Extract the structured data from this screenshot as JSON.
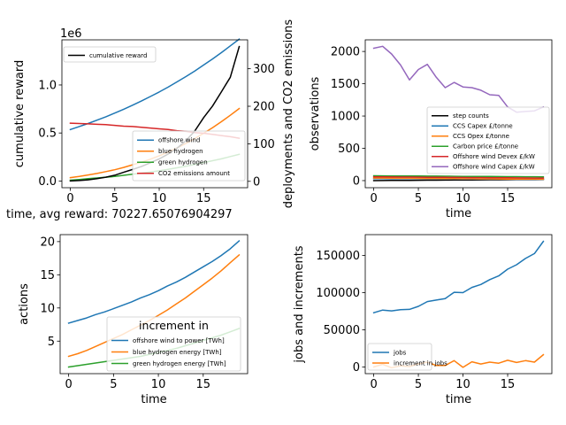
{
  "colors": {
    "blue": "#1f77b4",
    "orange": "#ff7f0e",
    "green": "#2ca02c",
    "red": "#d62728",
    "purple": "#9467bd",
    "black": "#000000"
  },
  "chart_data": [
    {
      "panel": "top-left",
      "type": "line",
      "title": "",
      "xlabel": "time, avg reward: 70227.65076904297",
      "xlim": [
        -0.95,
        19.95
      ],
      "x": [
        0,
        1,
        2,
        3,
        4,
        5,
        6,
        7,
        8,
        9,
        10,
        11,
        12,
        13,
        14,
        15,
        16,
        17,
        18,
        19
      ],
      "left_axis": {
        "ylabel": "cumulative reward",
        "offset_text": "1e6",
        "ylim": [
          -0.07,
          1.47
        ],
        "ticks": [
          0.0,
          0.5,
          1.0
        ],
        "tick_labels": [
          "0.0",
          "0.5",
          "1.0"
        ],
        "legend_loc": "upper left",
        "series": [
          {
            "name": "cumulative reward",
            "color": "black",
            "values": [
              0,
              0.005,
              0.012,
              0.025,
              0.04,
              0.06,
              0.09,
              0.12,
              0.15,
              0.19,
              0.23,
              0.28,
              0.34,
              0.42,
              0.52,
              0.66,
              0.78,
              0.93,
              1.08,
              1.4
            ]
          }
        ]
      },
      "right_axis": {
        "ylabel": "deployments and CO2 emissions",
        "ylim": [
          -17,
          377
        ],
        "ticks": [
          0,
          100,
          200,
          300
        ],
        "tick_labels": [
          "0",
          "100",
          "200",
          "300"
        ],
        "legend_loc": "lower right",
        "series": [
          {
            "name": "offshore wind",
            "color": "blue",
            "values": [
              138,
              146,
              154,
              163,
              172,
              182,
              192,
              203,
              214,
              226,
              238,
              251,
              265,
              279,
              294,
              310,
              326,
              343,
              361,
              379
            ]
          },
          {
            "name": "blue hydrogen",
            "color": "orange",
            "values": [
              10,
              13,
              17,
              21,
              26,
              31,
              37,
              44,
              51,
              59,
              68,
              78,
              89,
              101,
              114,
              128,
              143,
              159,
              176,
              194
            ]
          },
          {
            "name": "green hydrogen",
            "color": "green",
            "values": [
              3,
              5,
              7,
              9,
              11,
              13,
              16,
              19,
              22,
              25,
              28,
              32,
              36,
              40,
              45,
              50,
              55,
              60,
              66,
              72
            ]
          },
          {
            "name": "CO2 emissions amount",
            "color": "red",
            "values": [
              155,
              154,
              153,
              152,
              151,
              149,
              147,
              146,
              144,
              142,
              140,
              138,
              135,
              133,
              130,
              128,
              125,
              122,
              119,
              115
            ]
          }
        ]
      }
    },
    {
      "panel": "top-right",
      "type": "line",
      "title": "",
      "xlabel": "time",
      "ylabel": "observations",
      "xlim": [
        -0.95,
        19.95
      ],
      "ylim": [
        -110,
        2180
      ],
      "yticks": [
        0,
        500,
        1000,
        1500,
        2000
      ],
      "ytick_labels": [
        "0",
        "500",
        "1000",
        "1500",
        "2000"
      ],
      "legend_loc": "lower right",
      "x": [
        0,
        1,
        2,
        3,
        4,
        5,
        6,
        7,
        8,
        9,
        10,
        11,
        12,
        13,
        14,
        15,
        16,
        17,
        18,
        19
      ],
      "series": [
        {
          "name": "step counts",
          "color": "black",
          "values": [
            0,
            1,
            2,
            3,
            4,
            5,
            6,
            7,
            8,
            9,
            10,
            11,
            12,
            13,
            14,
            15,
            16,
            17,
            18,
            19
          ]
        },
        {
          "name": "CCS Capex £/tonne",
          "color": "blue",
          "values": [
            30,
            30,
            29,
            29,
            28,
            28,
            27,
            27,
            26,
            26,
            25,
            25,
            24,
            24,
            23,
            23,
            22,
            22,
            21,
            21
          ]
        },
        {
          "name": "CCS Opex £/tonne",
          "color": "orange",
          "values": [
            40,
            39,
            37,
            36,
            35,
            34,
            33,
            32,
            31,
            30,
            29,
            28,
            27,
            27,
            26,
            25,
            24,
            24,
            23,
            22
          ]
        },
        {
          "name": "Carbon price £/tonne",
          "color": "green",
          "values": [
            75,
            74,
            73,
            72,
            71,
            71,
            70,
            69,
            68,
            67,
            66,
            66,
            65,
            64,
            63,
            62,
            61,
            60,
            60,
            59
          ]
        },
        {
          "name": "Offshore wind Devex £/kW",
          "color": "red",
          "values": [
            58,
            57,
            56,
            55,
            54,
            53,
            52,
            51,
            50,
            49,
            48,
            47,
            46,
            45,
            44,
            43,
            42,
            41,
            40,
            39
          ]
        },
        {
          "name": "Offshore wind Capex £/kW",
          "color": "purple",
          "values": [
            2050,
            2080,
            1960,
            1790,
            1560,
            1720,
            1800,
            1600,
            1440,
            1520,
            1450,
            1440,
            1400,
            1330,
            1320,
            1140,
            1060,
            1070,
            1080,
            1140
          ]
        }
      ]
    },
    {
      "panel": "bottom-left",
      "type": "line",
      "title": "",
      "xlabel": "time",
      "ylabel": "actions",
      "xlim": [
        -0.95,
        19.95
      ],
      "ylim": [
        0.1,
        21.05
      ],
      "yticks": [
        5,
        10,
        15,
        20
      ],
      "ytick_labels": [
        "5",
        "10",
        "15",
        "20"
      ],
      "legend_title": "increment in",
      "legend_loc": "lower right",
      "x": [
        0,
        1,
        2,
        3,
        4,
        5,
        6,
        7,
        8,
        9,
        10,
        11,
        12,
        13,
        14,
        15,
        16,
        17,
        18,
        19
      ],
      "series": [
        {
          "name": "offshore wind to power [TWh]",
          "color": "blue",
          "values": [
            7.7,
            8.1,
            8.5,
            9.0,
            9.4,
            9.9,
            10.4,
            10.9,
            11.5,
            12.0,
            12.6,
            13.3,
            13.9,
            14.6,
            15.4,
            16.2,
            17.0,
            17.9,
            18.9,
            20.1
          ]
        },
        {
          "name": "blue hydrogen energy [TWh]",
          "color": "orange",
          "values": [
            2.7,
            3.1,
            3.6,
            4.2,
            4.8,
            5.4,
            6.0,
            6.7,
            7.4,
            8.1,
            8.9,
            9.7,
            10.6,
            11.5,
            12.5,
            13.5,
            14.5,
            15.6,
            16.8,
            18.0
          ]
        },
        {
          "name": "green hydrogen energy [TWh]",
          "color": "green",
          "values": [
            1.1,
            1.3,
            1.5,
            1.7,
            1.9,
            2.1,
            2.3,
            2.5,
            2.7,
            3.0,
            3.3,
            3.6,
            3.9,
            4.3,
            4.7,
            5.1,
            5.5,
            5.9,
            6.4,
            6.9
          ]
        }
      ]
    },
    {
      "panel": "bottom-right",
      "type": "line",
      "title": "",
      "xlabel": "time",
      "ylabel": "jobs and increments",
      "xlim": [
        -0.95,
        19.95
      ],
      "ylim": [
        -9000,
        178000
      ],
      "yticks": [
        0,
        50000,
        100000,
        150000
      ],
      "ytick_labels": [
        "0",
        "50000",
        "100000",
        "150000"
      ],
      "legend_loc": "lower left",
      "x": [
        0,
        1,
        2,
        3,
        4,
        5,
        6,
        7,
        8,
        9,
        10,
        11,
        12,
        13,
        14,
        15,
        16,
        17,
        18,
        19
      ],
      "series": [
        {
          "name": "jobs",
          "color": "blue",
          "values": [
            73000,
            76500,
            75500,
            77000,
            77500,
            81500,
            88000,
            90000,
            92000,
            100500,
            100000,
            107000,
            111000,
            117500,
            122500,
            131500,
            137500,
            146000,
            152500,
            169000
          ]
        },
        {
          "name": "increment in jobs",
          "color": "orange",
          "values": [
            0,
            3500,
            -1000,
            1500,
            500,
            4000,
            6500,
            2000,
            2000,
            8500,
            -500,
            7000,
            4000,
            6500,
            5000,
            9000,
            6000,
            8500,
            6500,
            16500
          ]
        }
      ]
    }
  ]
}
